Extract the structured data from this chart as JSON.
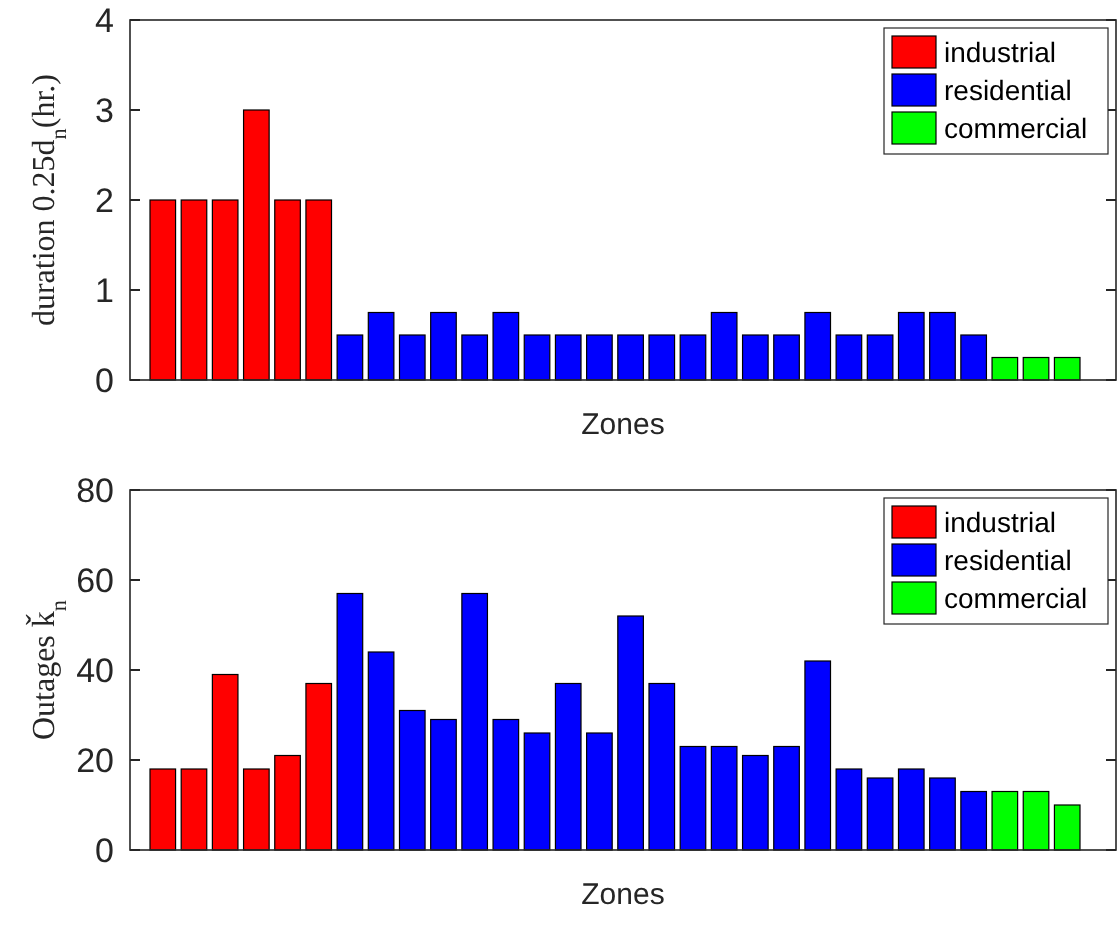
{
  "chart_data": [
    {
      "type": "bar",
      "stacked": true,
      "xlabel": "Zones",
      "ylabel": "duration 0.25d$_{n}$(hr.)",
      "categories": [
        null,
        null,
        null,
        null,
        null,
        null,
        null,
        null,
        null,
        null,
        null,
        null,
        null,
        null,
        null,
        null,
        null,
        null,
        null,
        null,
        null,
        null,
        null,
        null,
        null,
        null,
        null,
        null,
        null,
        null
      ],
      "ylim": [
        0,
        4
      ],
      "yticks": [
        0,
        1,
        2,
        3,
        4
      ],
      "legend": "top right",
      "grid": false,
      "series": [
        {
          "name": "industrial",
          "color": "#ff0000",
          "values": [
            2,
            2,
            2,
            3,
            2,
            2,
            null,
            null,
            null,
            null,
            null,
            null,
            null,
            null,
            null,
            null,
            null,
            null,
            null,
            null,
            null,
            null,
            null,
            null,
            null,
            null,
            null,
            null,
            null,
            null
          ]
        },
        {
          "name": "residential",
          "color": "#0000ff",
          "values": [
            null,
            null,
            null,
            null,
            null,
            null,
            0.5,
            0.75,
            0.5,
            0.75,
            0.5,
            0.75,
            0.5,
            0.5,
            0.5,
            0.5,
            0.5,
            0.5,
            0.75,
            0.5,
            0.5,
            0.75,
            0.5,
            0.5,
            0.75,
            0.75,
            0.5,
            null,
            null,
            null
          ]
        },
        {
          "name": "commercial",
          "color": "#00ff00",
          "values": [
            null,
            null,
            null,
            null,
            null,
            null,
            null,
            null,
            null,
            null,
            null,
            null,
            null,
            null,
            null,
            null,
            null,
            null,
            null,
            null,
            null,
            null,
            null,
            null,
            null,
            null,
            null,
            0.25,
            0.25,
            0.25
          ]
        }
      ]
    },
    {
      "type": "bar",
      "stacked": true,
      "xlabel": "Zones",
      "ylabel": "Outages ǩ$_{n}$",
      "categories": [
        null,
        null,
        null,
        null,
        null,
        null,
        null,
        null,
        null,
        null,
        null,
        null,
        null,
        null,
        null,
        null,
        null,
        null,
        null,
        null,
        null,
        null,
        null,
        null,
        null,
        null,
        null,
        null,
        null,
        null
      ],
      "ylim": [
        0,
        80
      ],
      "yticks": [
        0,
        20,
        40,
        60,
        80
      ],
      "legend": "top right",
      "grid": false,
      "series": [
        {
          "name": "industrial",
          "color": "#ff0000",
          "values": [
            18,
            18,
            39,
            18,
            21,
            37,
            null,
            null,
            null,
            null,
            null,
            null,
            null,
            null,
            null,
            null,
            null,
            null,
            null,
            null,
            null,
            null,
            null,
            null,
            null,
            null,
            null,
            null,
            null,
            null
          ]
        },
        {
          "name": "residential",
          "color": "#0000ff",
          "values": [
            null,
            null,
            null,
            null,
            null,
            null,
            57,
            44,
            31,
            29,
            57,
            29,
            26,
            37,
            26,
            52,
            37,
            23,
            23,
            21,
            23,
            42,
            18,
            16,
            18,
            16,
            13,
            null,
            null,
            null
          ]
        },
        {
          "name": "commercial",
          "color": "#00ff00",
          "values": [
            null,
            null,
            null,
            null,
            null,
            null,
            null,
            null,
            null,
            null,
            null,
            null,
            null,
            null,
            null,
            null,
            null,
            null,
            null,
            null,
            null,
            null,
            null,
            null,
            null,
            null,
            null,
            13,
            13,
            10
          ]
        }
      ]
    }
  ]
}
